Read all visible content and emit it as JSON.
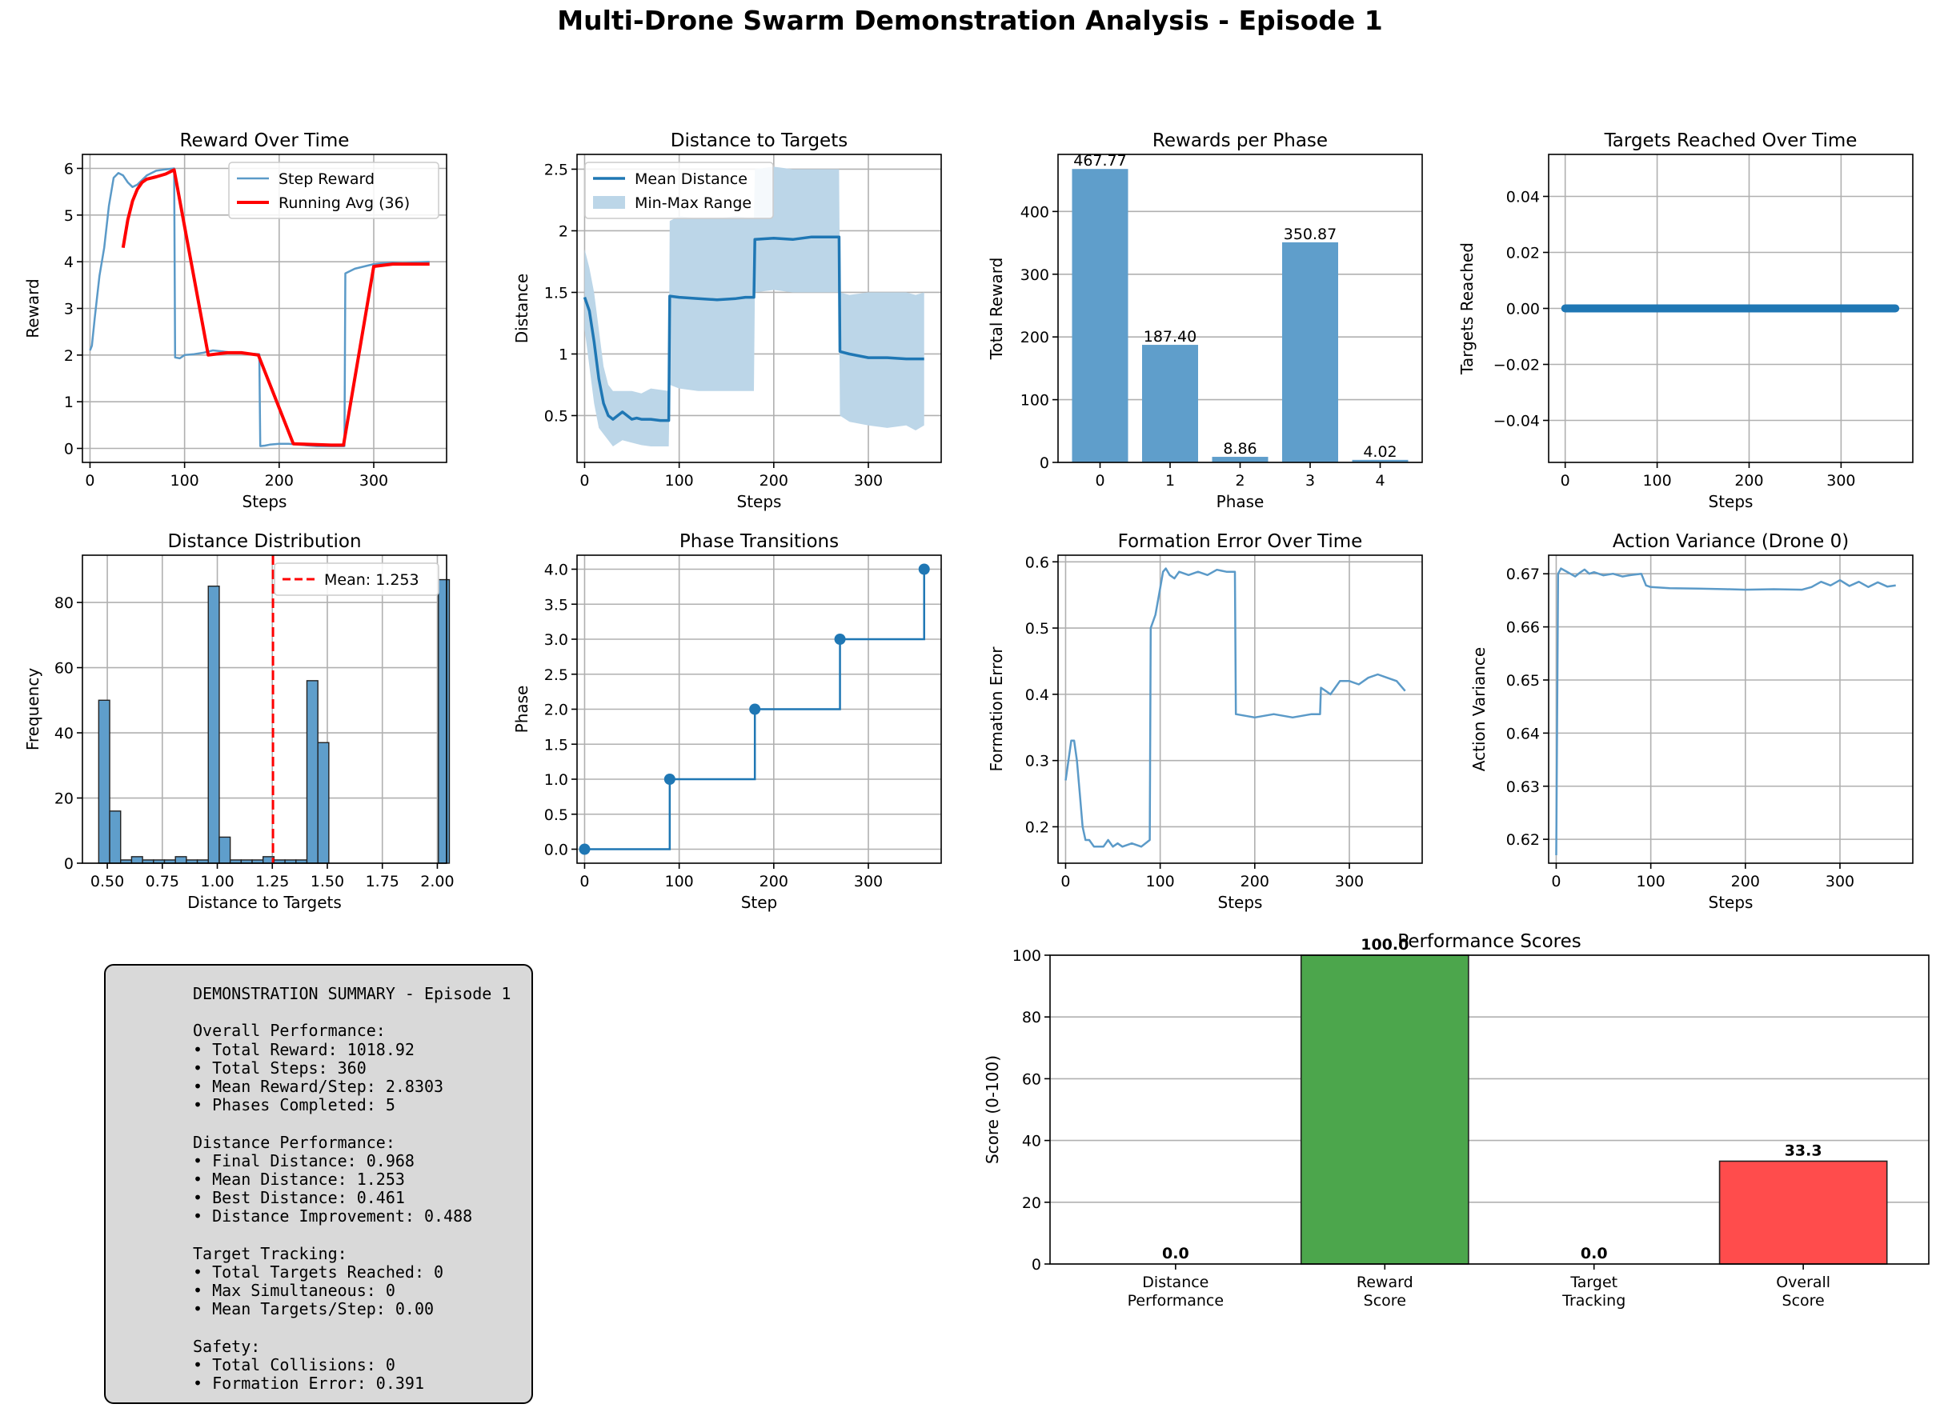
{
  "suptitle": "Multi-Drone Swarm Demonstration Analysis - Episode 1",
  "colors": {
    "blue": "#1f77b4",
    "fill": "#bcd6e8",
    "red": "#ff0000",
    "green": "#4ca64c",
    "redbar": "#ff4c4c",
    "grid": "#b0b0b0"
  },
  "chart_data": [
    {
      "id": "reward",
      "type": "line",
      "title": "Reward Over Time",
      "xlabel": "Steps",
      "ylabel": "Reward",
      "xlim": [
        -8,
        377
      ],
      "ylim": [
        -0.3,
        6.3
      ],
      "xticks": [
        0,
        100,
        200,
        300
      ],
      "yticks": [
        0,
        1,
        2,
        3,
        4,
        5,
        6
      ],
      "grid": true,
      "legend": "top-right",
      "series": [
        {
          "name": "Step Reward",
          "style": "line",
          "x": [
            0,
            2,
            5,
            10,
            15,
            20,
            25,
            30,
            35,
            40,
            45,
            50,
            60,
            70,
            80,
            89,
            90,
            95,
            100,
            110,
            120,
            130,
            140,
            150,
            160,
            170,
            179,
            180,
            185,
            190,
            200,
            210,
            220,
            240,
            260,
            269,
            270,
            275,
            280,
            290,
            300,
            310,
            320,
            330,
            340,
            359
          ],
          "y": [
            2.1,
            2.2,
            2.8,
            3.7,
            4.3,
            5.2,
            5.8,
            5.9,
            5.85,
            5.7,
            5.6,
            5.65,
            5.85,
            5.95,
            5.98,
            6.0,
            1.95,
            1.93,
            2.0,
            2.02,
            2.05,
            2.1,
            2.08,
            2.05,
            2.05,
            2.03,
            2.02,
            0.05,
            0.06,
            0.08,
            0.1,
            0.1,
            0.08,
            0.05,
            0.05,
            0.05,
            3.75,
            3.8,
            3.85,
            3.9,
            3.95,
            3.97,
            3.98,
            3.97,
            3.98,
            4.0
          ]
        },
        {
          "name": "Running Avg (36)",
          "style": "line",
          "x": [
            35,
            40,
            45,
            50,
            55,
            60,
            70,
            80,
            89,
            125,
            145,
            160,
            178,
            215,
            240,
            255,
            268,
            300,
            320,
            340,
            359
          ],
          "y": [
            4.3,
            4.9,
            5.3,
            5.55,
            5.7,
            5.77,
            5.82,
            5.88,
            5.97,
            2.0,
            2.05,
            2.05,
            2.0,
            0.1,
            0.08,
            0.07,
            0.07,
            3.9,
            3.95,
            3.95,
            3.95
          ]
        }
      ]
    },
    {
      "id": "distance",
      "type": "line",
      "title": "Distance to Targets",
      "xlabel": "Steps",
      "ylabel": "Distance",
      "xlim": [
        -8,
        377
      ],
      "ylim": [
        0.12,
        2.62
      ],
      "xticks": [
        0,
        100,
        200,
        300
      ],
      "yticks": [
        0.5,
        1.0,
        1.5,
        2.0,
        2.5
      ],
      "grid": true,
      "legend": "top-left",
      "series": [
        {
          "name": "Mean Distance",
          "style": "line",
          "x": [
            0,
            5,
            10,
            15,
            20,
            25,
            30,
            35,
            40,
            45,
            50,
            55,
            60,
            70,
            80,
            89,
            90,
            100,
            120,
            140,
            160,
            170,
            179,
            180,
            200,
            220,
            240,
            260,
            269,
            270,
            280,
            300,
            320,
            340,
            359
          ],
          "y": [
            1.46,
            1.35,
            1.1,
            0.8,
            0.6,
            0.5,
            0.47,
            0.5,
            0.53,
            0.5,
            0.47,
            0.48,
            0.47,
            0.47,
            0.46,
            0.46,
            1.47,
            1.46,
            1.45,
            1.44,
            1.45,
            1.46,
            1.46,
            1.93,
            1.94,
            1.93,
            1.95,
            1.95,
            1.95,
            1.02,
            1.0,
            0.97,
            0.97,
            0.96,
            0.96
          ]
        },
        {
          "name": "Min-Max Range",
          "style": "band",
          "x": [
            0,
            5,
            10,
            15,
            20,
            25,
            30,
            40,
            50,
            60,
            70,
            89,
            90,
            100,
            120,
            140,
            160,
            179,
            180,
            200,
            220,
            240,
            269,
            270,
            280,
            300,
            320,
            340,
            350,
            359
          ],
          "lo": [
            1.2,
            0.9,
            0.6,
            0.4,
            0.35,
            0.3,
            0.25,
            0.3,
            0.28,
            0.26,
            0.25,
            0.25,
            0.75,
            0.72,
            0.7,
            0.7,
            0.7,
            0.7,
            1.5,
            1.52,
            1.5,
            1.5,
            1.5,
            0.5,
            0.45,
            0.42,
            0.4,
            0.42,
            0.38,
            0.42
          ],
          "hi": [
            1.85,
            1.7,
            1.5,
            1.2,
            0.9,
            0.75,
            0.7,
            0.7,
            0.7,
            0.68,
            0.72,
            0.7,
            2.08,
            2.12,
            2.1,
            2.1,
            2.12,
            2.1,
            2.5,
            2.52,
            2.5,
            2.5,
            2.5,
            1.5,
            1.48,
            1.5,
            1.5,
            1.5,
            1.48,
            1.5
          ]
        }
      ]
    },
    {
      "id": "phase-rewards",
      "type": "bar",
      "title": "Rewards per Phase",
      "xlabel": "Phase",
      "ylabel": "Total Reward",
      "categories": [
        "0",
        "1",
        "2",
        "3",
        "4"
      ],
      "values": [
        467.77,
        187.4,
        8.86,
        350.87,
        4.02
      ],
      "labels": [
        "467.77",
        "187.40",
        "8.86",
        "350.87",
        "4.02"
      ],
      "ylim": [
        0,
        491
      ],
      "yticks": [
        0,
        100,
        200,
        300,
        400
      ],
      "grid": true
    },
    {
      "id": "targets",
      "type": "scatter",
      "title": "Targets Reached Over Time",
      "xlabel": "Steps",
      "ylabel": "Targets Reached",
      "xlim": [
        -18,
        378
      ],
      "ylim": [
        -0.055,
        0.055
      ],
      "xticks": [
        0,
        100,
        200,
        300
      ],
      "yticks": [
        -0.04,
        -0.02,
        0.0,
        0.02,
        0.04
      ],
      "ytick_labels": [
        "−0.04",
        "−0.02",
        "0.00",
        "0.02",
        "0.04"
      ],
      "grid": true,
      "x_range": [
        0,
        359
      ],
      "value": 0
    },
    {
      "id": "histogram",
      "type": "bar",
      "title": "Distance Distribution",
      "xlabel": "Distance to Targets",
      "ylabel": "Frequency",
      "bins_start": 0.461,
      "bin_width": 0.0498,
      "counts": [
        50,
        16,
        1,
        2,
        1,
        1,
        1,
        2,
        1,
        1,
        85,
        8,
        1,
        1,
        1,
        2,
        1,
        1,
        1,
        56,
        37,
        0,
        0,
        0,
        0,
        0,
        0,
        0,
        0,
        0,
        0,
        87
      ],
      "mean": 1.253,
      "mean_label": "Mean: 1.253",
      "xlim": [
        0.387,
        2.042
      ],
      "ylim": [
        0,
        94.5
      ],
      "xticks": [
        0.5,
        0.75,
        1.0,
        1.25,
        1.5,
        1.75,
        2.0
      ],
      "xtick_labels": [
        "0.50",
        "0.75",
        "1.00",
        "1.25",
        "1.50",
        "1.75",
        "2.00"
      ],
      "yticks": [
        0,
        20,
        40,
        60,
        80
      ],
      "grid": true,
      "legend": "top-right"
    },
    {
      "id": "phase-transitions",
      "type": "line",
      "title": "Phase Transitions",
      "xlabel": "Step",
      "ylabel": "Phase",
      "xlim": [
        -8,
        377
      ],
      "ylim": [
        -0.2,
        4.2
      ],
      "xticks": [
        0,
        100,
        200,
        300
      ],
      "yticks": [
        0,
        0.5,
        1,
        1.5,
        2,
        2.5,
        3,
        3.5,
        4
      ],
      "ytick_labels": [
        "0.0",
        "0.5",
        "1.0",
        "1.5",
        "2.0",
        "2.5",
        "3.0",
        "3.5",
        "4.0"
      ],
      "grid": true,
      "x": [
        0,
        90,
        180,
        270,
        359
      ],
      "y": [
        0,
        1,
        2,
        3,
        4
      ]
    },
    {
      "id": "formation",
      "type": "line",
      "title": "Formation Error Over Time",
      "xlabel": "Steps",
      "ylabel": "Formation Error",
      "xlim": [
        -8,
        377
      ],
      "ylim": [
        0.145,
        0.61
      ],
      "xticks": [
        0,
        100,
        200,
        300
      ],
      "yticks": [
        0.2,
        0.3,
        0.4,
        0.5,
        0.6
      ],
      "grid": true,
      "x": [
        0,
        3,
        6,
        9,
        12,
        15,
        18,
        21,
        25,
        30,
        40,
        45,
        50,
        55,
        60,
        70,
        80,
        89,
        90,
        95,
        100,
        103,
        106,
        110,
        115,
        120,
        130,
        140,
        150,
        160,
        170,
        179,
        180,
        200,
        220,
        240,
        260,
        269,
        270,
        275,
        280,
        290,
        300,
        310,
        320,
        330,
        340,
        350,
        359
      ],
      "y": [
        0.27,
        0.3,
        0.33,
        0.33,
        0.3,
        0.25,
        0.2,
        0.18,
        0.18,
        0.17,
        0.17,
        0.18,
        0.17,
        0.175,
        0.17,
        0.175,
        0.17,
        0.18,
        0.5,
        0.52,
        0.56,
        0.585,
        0.59,
        0.58,
        0.575,
        0.585,
        0.58,
        0.585,
        0.58,
        0.588,
        0.585,
        0.585,
        0.37,
        0.365,
        0.37,
        0.365,
        0.37,
        0.37,
        0.41,
        0.405,
        0.4,
        0.42,
        0.42,
        0.415,
        0.425,
        0.43,
        0.425,
        0.42,
        0.405
      ]
    },
    {
      "id": "action-variance",
      "type": "line",
      "title": "Action Variance (Drone 0)",
      "xlabel": "Steps",
      "ylabel": "Action Variance",
      "xlim": [
        -8,
        377
      ],
      "ylim": [
        0.6155,
        0.6735
      ],
      "xticks": [
        0,
        100,
        200,
        300
      ],
      "yticks": [
        0.62,
        0.63,
        0.64,
        0.65,
        0.66,
        0.67
      ],
      "grid": true,
      "x": [
        0,
        2,
        5,
        10,
        15,
        20,
        25,
        30,
        35,
        40,
        50,
        60,
        70,
        80,
        90,
        95,
        100,
        120,
        150,
        180,
        200,
        230,
        260,
        270,
        280,
        290,
        300,
        310,
        320,
        330,
        340,
        350,
        359
      ],
      "y": [
        0.617,
        0.67,
        0.671,
        0.6705,
        0.67,
        0.6695,
        0.6702,
        0.6708,
        0.67,
        0.6703,
        0.6697,
        0.67,
        0.6695,
        0.6698,
        0.67,
        0.6678,
        0.6675,
        0.6673,
        0.6672,
        0.6671,
        0.667,
        0.6671,
        0.667,
        0.6675,
        0.6685,
        0.6678,
        0.6688,
        0.6677,
        0.6685,
        0.6675,
        0.6684,
        0.6676,
        0.6678
      ]
    },
    {
      "id": "scores",
      "type": "bar",
      "title": "Performance Scores",
      "ylabel": "Score (0-100)",
      "categories": [
        [
          "Distance",
          "Performance"
        ],
        [
          "Reward",
          "Score"
        ],
        [
          "Target",
          "Tracking"
        ],
        [
          "Overall",
          "Score"
        ]
      ],
      "values": [
        0,
        100,
        0,
        33.3
      ],
      "labels": [
        "0.0",
        "100.0",
        "0.0",
        "33.3"
      ],
      "bar_colors": [
        "#1f77b4",
        "#4ca64c",
        "#1f77b4",
        "#ff4c4c"
      ],
      "ylim": [
        0,
        100
      ],
      "yticks": [
        0,
        20,
        40,
        60,
        80,
        100
      ],
      "grid": true
    }
  ],
  "summary": {
    "title": "DEMONSTRATION SUMMARY - Episode 1",
    "lines": [
      "DEMONSTRATION SUMMARY - Episode 1",
      "",
      "Overall Performance:",
      "• Total Reward: 1018.92",
      "• Total Steps: 360",
      "• Mean Reward/Step: 2.8303",
      "• Phases Completed: 5",
      "",
      "Distance Performance:",
      "• Final Distance: 0.968",
      "• Mean Distance: 1.253",
      "• Best Distance: 0.461",
      "• Distance Improvement: 0.488",
      "",
      "Target Tracking:",
      "• Total Targets Reached: 0",
      "• Max Simultaneous: 0",
      "• Mean Targets/Step: 0.00",
      "",
      "Safety:",
      "• Total Collisions: 0",
      "• Formation Error: 0.391"
    ]
  }
}
